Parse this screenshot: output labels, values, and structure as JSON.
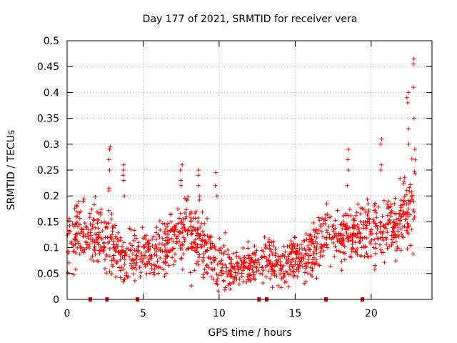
{
  "chart_data": {
    "type": "scatter",
    "title": "Day 177 of 2021, SRMTID for receiver vera",
    "xlabel": "GPS time / hours",
    "ylabel": "SRMTID / TECUs",
    "xlim": [
      0,
      24
    ],
    "ylim": [
      0,
      0.5
    ],
    "xticks": [
      0,
      5,
      10,
      15,
      20
    ],
    "xtick_labels": [
      "0",
      "5",
      "10",
      "15",
      "20"
    ],
    "yticks": [
      0,
      0.05,
      0.1,
      0.15,
      0.2,
      0.25,
      0.3,
      0.35,
      0.4,
      0.45,
      0.5
    ],
    "ytick_labels": [
      "0",
      "0.05",
      "0.1",
      "0.15",
      "0.2",
      "0.25",
      "0.3",
      "0.35",
      "0.4",
      "0.45",
      "0.5"
    ],
    "grid": true,
    "marker": "+",
    "color": "#ff0000",
    "series_envelope": {
      "description": "median SRMTID level vs time (hours)",
      "x": [
        0,
        1,
        2,
        3,
        4,
        5,
        6,
        7,
        8,
        9,
        10,
        11,
        12,
        13,
        14,
        15,
        16,
        17,
        18,
        19,
        20,
        21,
        22,
        22.9
      ],
      "median": [
        0.11,
        0.13,
        0.12,
        0.1,
        0.08,
        0.09,
        0.09,
        0.12,
        0.13,
        0.11,
        0.07,
        0.06,
        0.06,
        0.08,
        0.07,
        0.08,
        0.09,
        0.13,
        0.12,
        0.13,
        0.13,
        0.14,
        0.15,
        0.2
      ],
      "spread": [
        0.03,
        0.03,
        0.03,
        0.03,
        0.025,
        0.025,
        0.025,
        0.03,
        0.035,
        0.035,
        0.025,
        0.02,
        0.02,
        0.02,
        0.02,
        0.02,
        0.025,
        0.025,
        0.025,
        0.025,
        0.03,
        0.03,
        0.035,
        0.05
      ]
    },
    "spikes": [
      {
        "x": 2.8,
        "values": [
          0.21,
          0.215,
          0.25,
          0.27,
          0.29,
          0.295
        ]
      },
      {
        "x": 3.7,
        "values": [
          0.2,
          0.23,
          0.24,
          0.25,
          0.26
        ]
      },
      {
        "x": 7.5,
        "values": [
          0.22,
          0.23,
          0.25,
          0.26
        ]
      },
      {
        "x": 8.7,
        "values": [
          0.2,
          0.22,
          0.24,
          0.25
        ]
      },
      {
        "x": 9.8,
        "values": [
          0.2,
          0.22,
          0.245
        ]
      },
      {
        "x": 18.5,
        "values": [
          0.22,
          0.25,
          0.27,
          0.29
        ]
      },
      {
        "x": 20.7,
        "values": [
          0.25,
          0.26,
          0.3,
          0.31
        ]
      },
      {
        "x": 22.4,
        "values": [
          0.3,
          0.33,
          0.38,
          0.39,
          0.4
        ]
      },
      {
        "x": 22.8,
        "values": [
          0.29,
          0.35,
          0.41,
          0.455,
          0.465
        ]
      }
    ],
    "data_gap_markers_x": [
      1.5,
      2.6,
      4.6,
      12.6,
      13.1,
      17.0,
      19.4
    ]
  }
}
